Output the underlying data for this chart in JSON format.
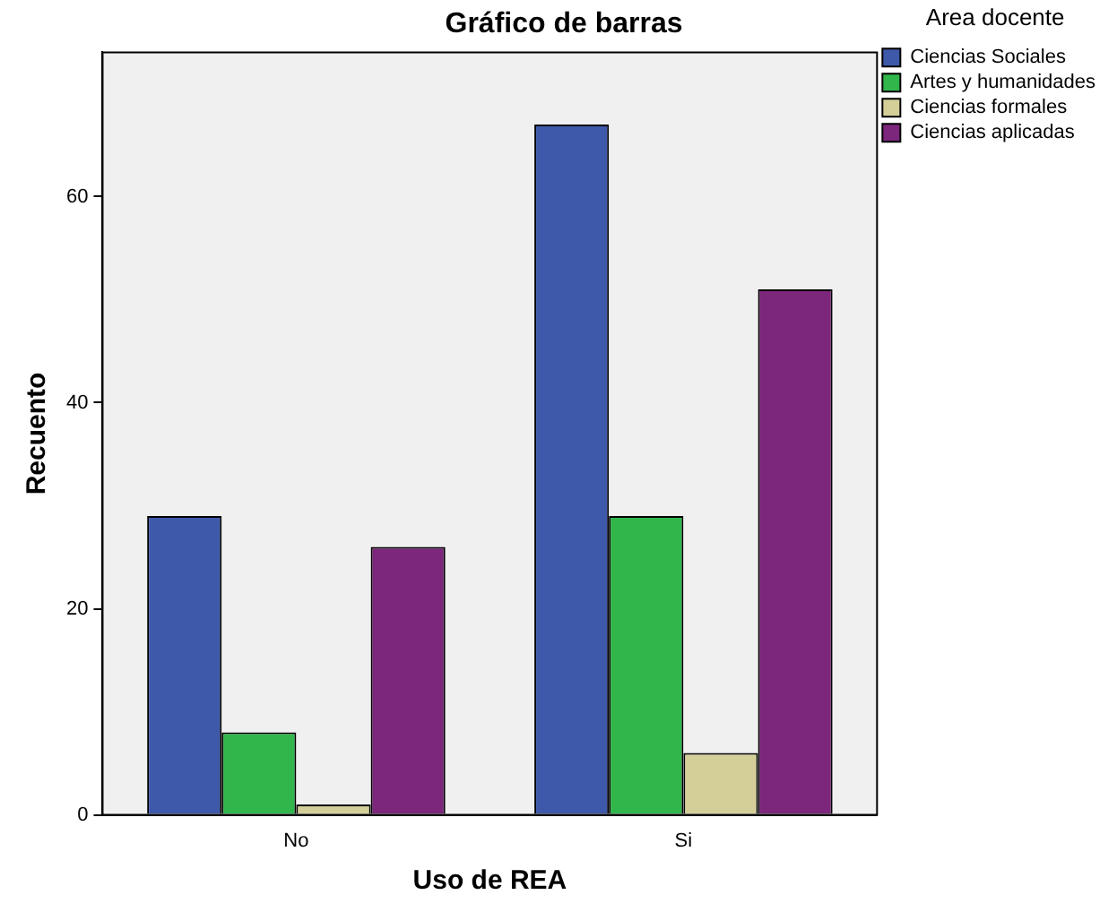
{
  "chart_data": {
    "type": "bar",
    "title": "Gráfico de barras",
    "xlabel": "Uso de REA",
    "ylabel": "Recuento",
    "legend_title": "Area docente",
    "categories": [
      "No",
      "Si"
    ],
    "series": [
      {
        "name": "Ciencias Sociales",
        "color": "#3f59aa",
        "values": [
          29,
          67
        ]
      },
      {
        "name": "Artes y humanidades",
        "color": "#30b64a",
        "values": [
          8,
          29
        ]
      },
      {
        "name": "Ciencias formales",
        "color": "#d4cf98",
        "values": [
          1,
          6
        ]
      },
      {
        "name": "Ciencias aplicadas",
        "color": "#7c267c",
        "values": [
          26,
          51
        ]
      }
    ],
    "ylim": [
      0,
      74
    ],
    "yticks": [
      0,
      20,
      40,
      60
    ],
    "grid": false,
    "legend": "top right"
  }
}
